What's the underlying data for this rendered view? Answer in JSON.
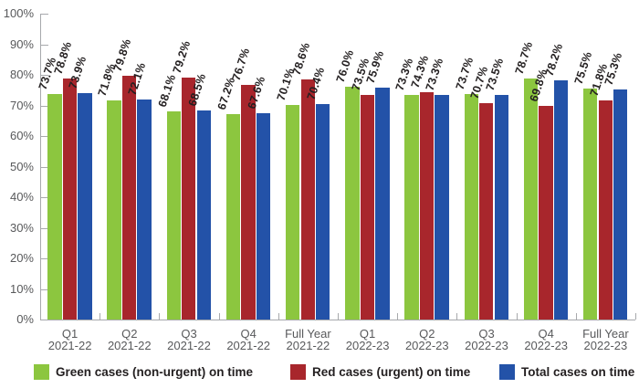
{
  "chart_data": {
    "type": "bar",
    "title": "",
    "xlabel": "",
    "ylabel": "",
    "ylim": [
      0,
      100
    ],
    "ytick_step": 10,
    "ytick_suffix": "%",
    "value_label_suffix": "%",
    "value_label_decimals": 1,
    "grid": false,
    "legend_position": "bottom",
    "categories": [
      {
        "line1": "Q1",
        "line2": "2021-22"
      },
      {
        "line1": "Q2",
        "line2": "2021-22"
      },
      {
        "line1": "Q3",
        "line2": "2021-22"
      },
      {
        "line1": "Q4",
        "line2": "2021-22"
      },
      {
        "line1": "Full Year",
        "line2": "2021-22"
      },
      {
        "line1": "Q1",
        "line2": "2022-23"
      },
      {
        "line1": "Q2",
        "line2": "2022-23"
      },
      {
        "line1": "Q3",
        "line2": "2022-23"
      },
      {
        "line1": "Q4",
        "line2": "2022-23"
      },
      {
        "line1": "Full Year",
        "line2": "2022-23"
      }
    ],
    "series": [
      {
        "name": "Green cases (non-urgent) on time",
        "color": "#8CC63F",
        "values": [
          73.7,
          71.8,
          68.1,
          67.2,
          70.1,
          76.0,
          73.3,
          73.7,
          78.7,
          75.5
        ]
      },
      {
        "name": "Red cases (urgent) on time",
        "color": "#A8262C",
        "values": [
          78.8,
          79.8,
          79.2,
          76.7,
          78.6,
          73.5,
          74.3,
          70.7,
          69.8,
          71.8
        ]
      },
      {
        "name": "Total cases on time",
        "color": "#2352A8",
        "values": [
          73.9,
          72.1,
          68.5,
          67.6,
          70.4,
          75.9,
          73.3,
          73.5,
          78.2,
          75.3
        ]
      }
    ]
  },
  "colors": {
    "background": "#FFFFFF",
    "axis": "#A7A9AC",
    "axis_text": "#58595B",
    "value_label_text": "#231F20",
    "legend_text": "#231F20"
  }
}
